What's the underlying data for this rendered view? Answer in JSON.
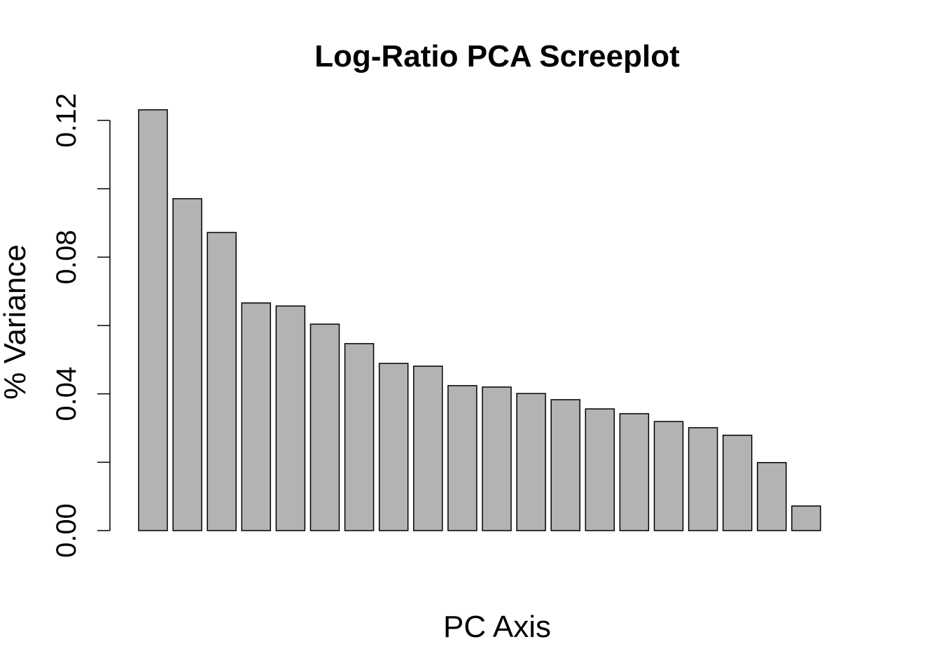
{
  "chart_data": {
    "type": "bar",
    "title": "Log-Ratio PCA Screeplot",
    "x_label": "PC Axis",
    "y_label": "% Variance",
    "categories": [
      null,
      null,
      null,
      null,
      null,
      null,
      null,
      null,
      null,
      null,
      null,
      null,
      null,
      null,
      null,
      null,
      null,
      null,
      null,
      null,
      null
    ],
    "values": [
      0.1231,
      0.0971,
      0.0872,
      0.0666,
      0.0657,
      0.0604,
      0.0547,
      0.0489,
      0.0481,
      0.0424,
      0.042,
      0.0401,
      0.0383,
      0.0356,
      0.0342,
      0.0319,
      0.0301,
      0.0279,
      0.0199,
      0.0072,
      0
    ],
    "color": "#b3b3b3",
    "ylim": [
      0,
      0.12
    ],
    "yticks": [
      {
        "value": 0,
        "label": "0.00"
      },
      0.04,
      0.08,
      0.12
    ],
    "yticks_minor": [
      0.02,
      0.06,
      0.1
    ],
    "grid": false
  }
}
